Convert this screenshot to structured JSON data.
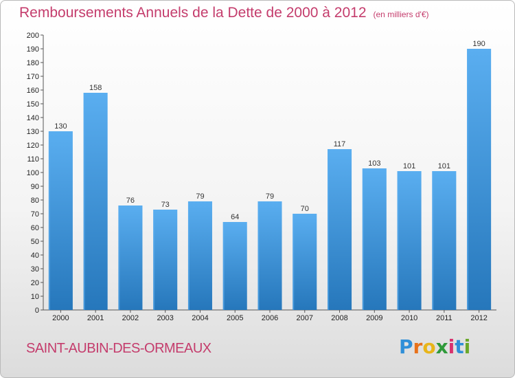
{
  "header": {
    "title": "Remboursements Annuels de la Dette de 2000 à 2012",
    "unit": "(en milliers d'€)"
  },
  "footer": {
    "commune": "SAINT-AUBIN-DES-ORMEAUX",
    "brand_letters": [
      "P",
      "r",
      "o",
      "x",
      "i",
      "t",
      "i"
    ],
    "brand_colors": [
      "#2f8fd8",
      "#e8711a",
      "#e8b51a",
      "#2f9a3a",
      "#d8326e",
      "#2f8fd8",
      "#6aa82a"
    ]
  },
  "chart_data": {
    "type": "bar",
    "categories": [
      "2000",
      "2001",
      "2002",
      "2003",
      "2004",
      "2005",
      "2006",
      "2007",
      "2008",
      "2009",
      "2010",
      "2011",
      "2012"
    ],
    "values": [
      130,
      158,
      76,
      73,
      79,
      64,
      79,
      70,
      117,
      103,
      101,
      101,
      190
    ],
    "ylim": [
      0,
      200
    ],
    "ytick_step": 10,
    "grid": false,
    "bar_color": "#3a8fd4",
    "bar_color_light": "#5aaef0",
    "bar_color_dark": "#2677bb"
  }
}
